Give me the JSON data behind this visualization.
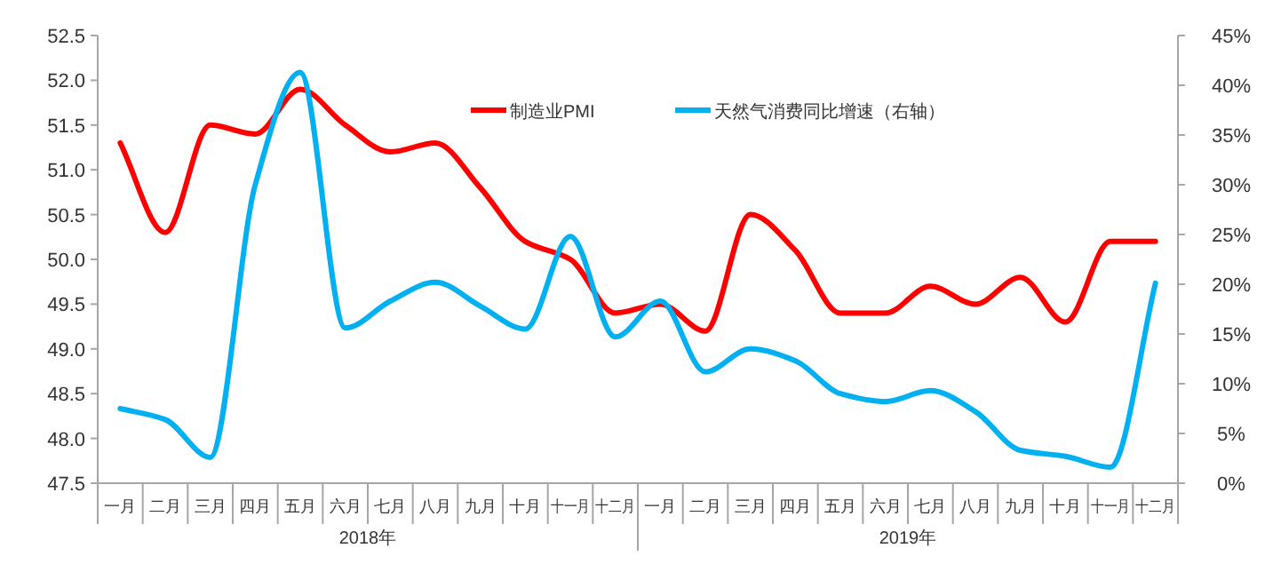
{
  "chart_data": {
    "type": "line",
    "categories": [
      "一月",
      "二月",
      "三月",
      "四月",
      "五月",
      "六月",
      "七月",
      "八月",
      "九月",
      "十月",
      "十一月",
      "十二月",
      "一月",
      "二月",
      "三月",
      "四月",
      "五月",
      "六月",
      "七月",
      "八月",
      "九月",
      "十月",
      "十一月",
      "十二月"
    ],
    "series": [
      {
        "name": "制造业PMI",
        "color": "#ff0000",
        "values": [
          51.3,
          50.3,
          51.5,
          51.4,
          51.9,
          51.5,
          51.2,
          51.3,
          50.8,
          50.2,
          50.0,
          49.4,
          49.5,
          49.2,
          50.5,
          50.1,
          49.4,
          49.4,
          49.7,
          49.5,
          49.8,
          49.3,
          50.2,
          50.2
        ]
      },
      {
        "name": "天然气消费同比增速（右轴）",
        "color": "#00b0f0",
        "axis": "y2",
        "values": [
          7.5,
          6.4,
          2.6,
          30,
          41.3,
          15.6,
          18.3,
          20.2,
          17.8,
          15.5,
          24.8,
          14.7,
          18.3,
          11.2,
          13.5,
          12.3,
          9.0,
          8.2,
          9.3,
          7.2,
          3.3,
          2.7,
          1.6,
          20.1
        ]
      }
    ],
    "ylim": [
      47.5,
      52.5
    ],
    "yticks": [
      47.5,
      {
        "value": 48,
        "label": "48.0"
      },
      48.5,
      {
        "value": 49,
        "label": "49.0"
      },
      49.5,
      {
        "value": 50,
        "label": "50.0"
      },
      50.5,
      {
        "value": 51,
        "label": "51.0"
      },
      51.5,
      {
        "value": 52,
        "label": "52.0"
      },
      52.5
    ],
    "y2lim": [
      0,
      45
    ],
    "y2ticks": [
      {
        "value": 0,
        "label": "0%"
      },
      {
        "value": 5,
        "label": "5%"
      },
      {
        "value": 10,
        "label": "10%"
      },
      {
        "value": 15,
        "label": "15%"
      },
      {
        "value": 20,
        "label": "20%"
      },
      {
        "value": 25,
        "label": "25%"
      },
      {
        "value": 30,
        "label": "30%"
      },
      {
        "value": 35,
        "label": "35%"
      },
      {
        "value": 40,
        "label": "40%"
      },
      {
        "value": 45,
        "label": "45%"
      }
    ],
    "annotations": [
      "2018年",
      "2019年"
    ],
    "legend": "top",
    "grid": false,
    "line_style": "solid",
    "marker": "none"
  }
}
